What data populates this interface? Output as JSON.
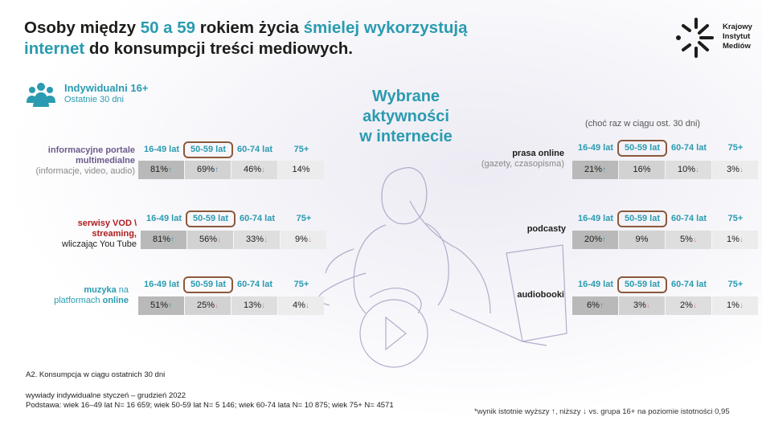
{
  "title": {
    "part1": "Osoby między ",
    "part2": "50 a 59",
    "part3": " rokiem życia ",
    "part4": "śmielej wykorzystują",
    "part5": "internet",
    "part6": " do konsumpcji treści mediowych."
  },
  "logo": {
    "line1": "Krajowy",
    "line2": "Instytut",
    "line3": "Mediów"
  },
  "respondents": {
    "title": "Indywidualni 16+",
    "subtitle": "Ostatnie 30 dni"
  },
  "center_title": {
    "line1": "Wybrane",
    "line2": "aktywności",
    "line3": "w internecie"
  },
  "note_top": "(choć raz w ciągu ost. 30 dni)",
  "colors": {
    "teal": "#2a9bb0",
    "red": "#b01c1c",
    "purple": "#6b5b8c",
    "box": "#8b5a3c"
  },
  "chart_data": {
    "type": "table",
    "columns": [
      "16-49 lat",
      "50-59 lat",
      "60-74 lat",
      "75+"
    ],
    "activities": [
      {
        "label_bold": "informacyjne portale multimedialne",
        "label_sub": "(informacje, video, audio)",
        "values": [
          "81%",
          "69%",
          "46%",
          "14%"
        ],
        "marks": [
          "up",
          "up",
          "dn",
          ""
        ]
      },
      {
        "label_bold": "serwisy VOD \\ streaming,",
        "label_sub": "wliczając You Tube",
        "values": [
          "81%",
          "56%",
          "33%",
          "9%"
        ],
        "marks": [
          "up",
          "dn",
          "dn",
          "dn"
        ]
      },
      {
        "label_bold": "muzyka",
        "label_mid": " na",
        "label_sub": "platformach ",
        "label_sub_bold": "online",
        "values": [
          "51%",
          "25%",
          "13%",
          "4%"
        ],
        "marks": [
          "up",
          "dn",
          "dn",
          "dn"
        ]
      },
      {
        "label_bold": "prasa online",
        "label_sub": "(gazety, czasopisma)",
        "values": [
          "21%",
          "16%",
          "10%",
          "3%"
        ],
        "marks": [
          "up",
          "",
          "dn",
          "dn"
        ]
      },
      {
        "label_bold": "podcasty",
        "label_sub": "",
        "values": [
          "20%",
          "9%",
          "5%",
          "1%"
        ],
        "marks": [
          "up",
          "",
          "dn",
          "dn"
        ]
      },
      {
        "label_bold": "audiobooki",
        "label_sub": "",
        "values": [
          "6%",
          "3%",
          "2%",
          "1%"
        ],
        "marks": [
          "up",
          "dn",
          "dn",
          "dn"
        ]
      }
    ]
  },
  "footer": {
    "source": "A2. Konsumpcja w ciągu ostatnich 30 dni",
    "method": "wywiady indywidualne styczeń – grudzień 2022",
    "base": "Podstawa: wiek 16–49 lat N= 16 659; wiek  50-59 lat N= 5 146; wiek  60-74 lata N= 10 875; wiek 75+ N= 4571",
    "significance": "*wynik istotnie wyższy ↑, niższy ↓ vs. grupa 16+ na poziomie istotności 0,95"
  }
}
